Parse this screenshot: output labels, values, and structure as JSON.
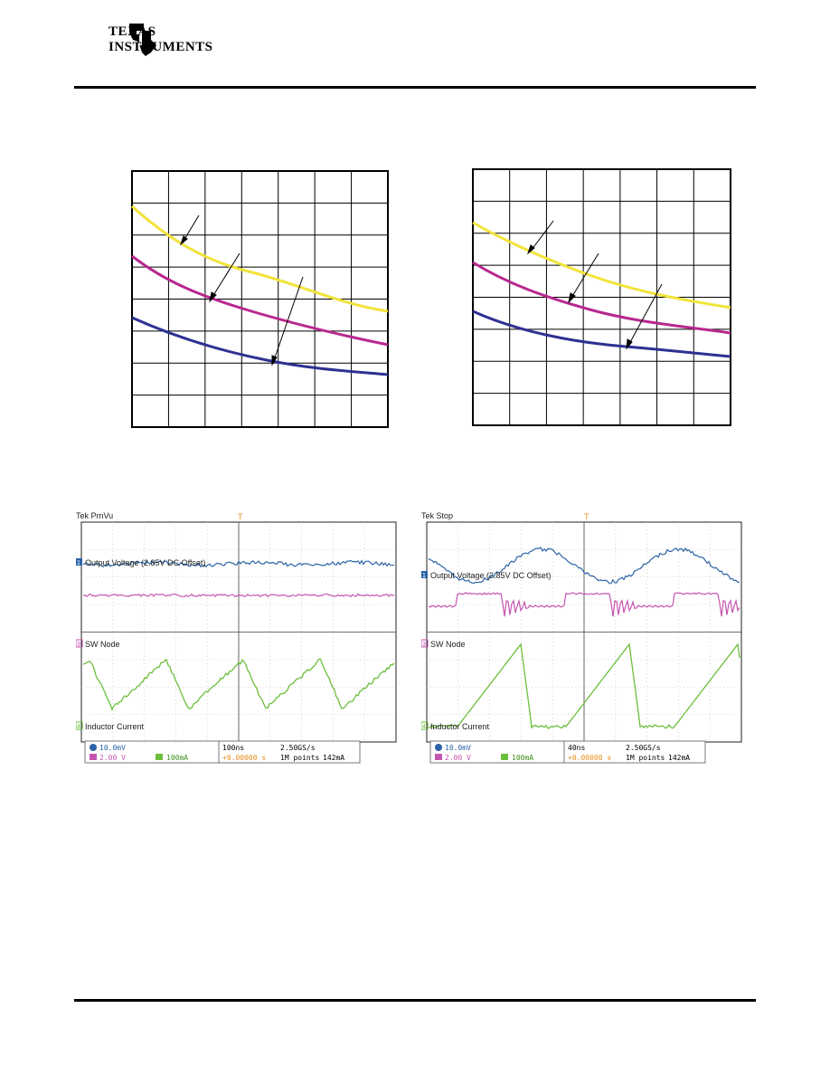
{
  "logo": {
    "brand_line1": "TEXAS",
    "brand_line2": "INSTRUMENTS"
  },
  "colors": {
    "yellow": "#f2e33a",
    "magenta": "#b8288f",
    "blue": "#2e3192",
    "ch1": "#2b63a6",
    "ch3": "#c455b0",
    "ch4": "#6cbf3c",
    "trigger": "#e88c1a"
  },
  "graph_left": {
    "rows": 8,
    "cols": 7
  },
  "graph_right": {
    "rows": 8,
    "cols": 7
  },
  "scope_left": {
    "status_title": "Tek PrnVu",
    "trigger_marker": "T",
    "ch1_label": "Output Voltage (2.85V DC Offset)",
    "ch3_label": "SW Node",
    "ch4_label": "Inductor Current",
    "ch1_scale": "10.0mV",
    "ch3_scale": "2.00 V",
    "ch4_scale": "100mA",
    "timebase": "100ns",
    "sample_rate": "2.50GS/s",
    "trig_pos": "+0.00000 s",
    "record_len": "1M points",
    "trig_level": "142mA",
    "ch1_num": "1",
    "ch3_num": "3",
    "ch4_num": "4"
  },
  "scope_right": {
    "status_title": "Tek Stop",
    "trigger_marker": "T",
    "ch1_label": "Output Voltage (2.85V DC Offset)",
    "ch3_label": "SW Node",
    "ch4_label": "Inductor Current",
    "ch1_scale": "10.0mV",
    "ch3_scale": "2.00 V",
    "ch4_scale": "100mA",
    "timebase": "40ns",
    "sample_rate": "2.50GS/s",
    "trig_pos": "+0.00000 s",
    "record_len": "1M points",
    "trig_level": "142mA",
    "ch1_num": "1",
    "ch3_num": "3",
    "ch4_num": "4"
  }
}
